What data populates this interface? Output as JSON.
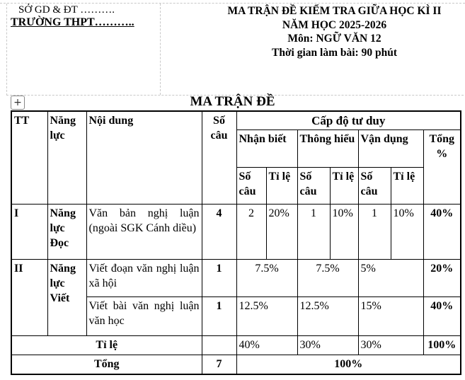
{
  "header": {
    "department": "SỞ GD & ĐT ……….",
    "school": "TRƯỜNG THPT………..",
    "title_lines": [
      "MA TRẬN ĐỀ KIỂM TRA GIỮA HỌC KÌ II",
      "NĂM HỌC 2025-2026",
      "Môn: NGỮ VĂN 12",
      "Thời gian làm bài: 90 phút"
    ]
  },
  "doc_title": "MA TRẬN ĐỀ",
  "table_move_handle": "+",
  "table": {
    "headers": {
      "tt": "TT",
      "nang_luc": "Năng lực",
      "noi_dung": "Nội dung",
      "so_cau": "Số câu",
      "cap_do": "Cấp độ tư duy",
      "nhan_biet": "Nhận biết",
      "thong_hieu": "Thông hiểu",
      "van_dung": "Vận dụng",
      "tong_pct": "Tổng %",
      "sub_so_cau": "Số câu",
      "sub_ti_le": "Tỉ lệ"
    },
    "rows": [
      {
        "tt": "I",
        "nang_luc": "Năng lực Đọc",
        "noi_dung": "Văn bản nghị luận (ngoài SGK Cánh diều)",
        "so_cau": "4",
        "nb_so_cau": "2",
        "nb_ti_le": "20%",
        "th_so_cau": "1",
        "th_ti_le": "10%",
        "vd_so_cau": "1",
        "vd_ti_le": "10%",
        "tong": "40%"
      },
      {
        "tt": "II",
        "nang_luc": "Năng lực Viết",
        "noi_dung": "Viết đoạn văn nghị luận xã hội",
        "so_cau": "1",
        "nb": "7.5%",
        "th": "7.5%",
        "vd": "5%",
        "tong": "20%"
      },
      {
        "noi_dung": "Viết bài văn nghị luận văn học",
        "so_cau": "1",
        "nb": "12.5%",
        "th": "12.5%",
        "vd": "15%",
        "tong": "40%"
      }
    ],
    "ti_le": {
      "label": "Tỉ lệ",
      "nb": "40%",
      "th": "30%",
      "vd": "30%",
      "tong": "100%"
    },
    "tong": {
      "label": "Tổng",
      "so_cau": "7",
      "total": "100%"
    }
  }
}
